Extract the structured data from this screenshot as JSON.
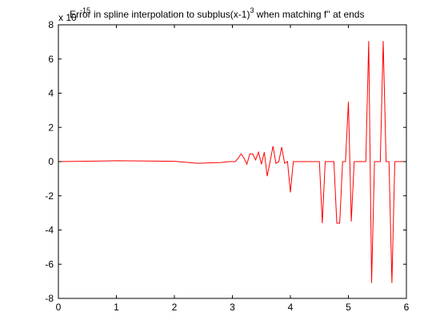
{
  "chart_data": {
    "type": "line",
    "title": "Error in spline interpolation to subplus(x-1)",
    "title_superscript": "3",
    "title_suffix": " when matching f'' at ends",
    "y_multiplier_base": "x 10",
    "y_multiplier_exponent": "-15",
    "xlim": [
      0,
      6
    ],
    "ylim": [
      -8,
      8
    ],
    "x_ticks": [
      "0",
      "1",
      "2",
      "3",
      "4",
      "5",
      "6"
    ],
    "y_ticks": [
      "8",
      "6",
      "4",
      "2",
      "0",
      "-2",
      "-4",
      "-6",
      "-8"
    ],
    "grid": false,
    "line_color": "#ff0000",
    "series": [
      {
        "x": [
          0,
          1,
          2,
          2.4,
          2.8,
          2.95,
          3.05,
          3.1,
          3.15,
          3.2,
          3.25,
          3.3,
          3.35,
          3.4,
          3.45,
          3.5,
          3.55,
          3.6,
          3.65,
          3.7,
          3.75,
          3.8,
          3.85,
          3.9,
          3.95,
          4.0,
          4.05,
          4.1,
          4.15,
          4.2,
          4.25,
          4.3,
          4.35,
          4.4,
          4.45,
          4.5,
          4.55,
          4.6,
          4.65,
          4.7,
          4.75,
          4.8,
          4.85,
          4.9,
          4.95,
          5.0,
          5.05,
          5.1,
          5.15,
          5.2,
          5.25,
          5.3,
          5.35,
          5.4,
          5.45,
          5.5,
          5.55,
          5.6,
          5.65,
          5.7,
          5.75,
          5.8,
          5.85,
          5.9,
          5.95,
          6.0
        ],
        "y": [
          0,
          0.05,
          0.02,
          -0.1,
          -0.05,
          0,
          0,
          0.2,
          0.45,
          0.2,
          -0.15,
          0.45,
          0.45,
          0.1,
          0.55,
          -0.15,
          0.55,
          -0.85,
          0,
          0.9,
          -0.1,
          0,
          0.85,
          -0.1,
          0,
          -1.8,
          0,
          0,
          0,
          0,
          0,
          0,
          0,
          0,
          0,
          0,
          -3.6,
          0,
          0,
          0,
          0,
          -3.6,
          -3.6,
          0,
          0,
          3.5,
          -3.5,
          0,
          0,
          0,
          0,
          0,
          7.05,
          -7.1,
          0,
          0,
          0,
          7.05,
          0,
          0,
          -7.1,
          0,
          0,
          0,
          0,
          0
        ]
      }
    ]
  }
}
